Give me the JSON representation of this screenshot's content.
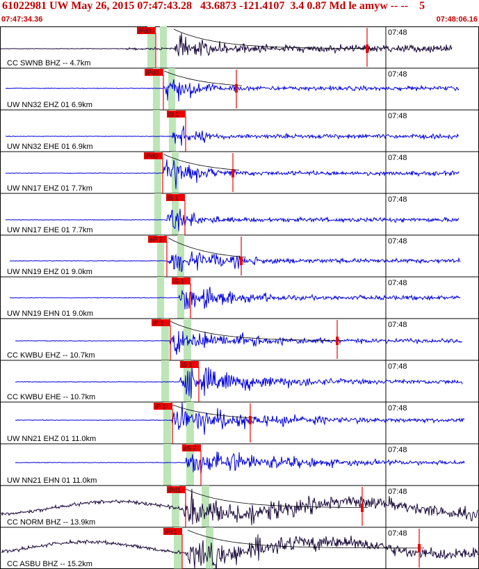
{
  "header": {
    "title": "61022981 UW May 26, 2015 07:47:43.28   43.6873 -121.4107  3.4 0.87 Md le amyw -- --    5",
    "start_time": "07:47:34.36",
    "end_time": "07:48:06.16"
  },
  "tick_label": "07:48",
  "colors": {
    "title": "#c00000",
    "pick": "#ee0000",
    "trace_broadband": "#1a0a3a",
    "trace_short_period": "#0000dd",
    "green_window": "#bde5b8",
    "amplitude_fit": "#000000"
  },
  "traces": [
    {
      "label": "CC SWNB BHZ -- 4.7km",
      "pick": "iPd0",
      "color": "broadband"
    },
    {
      "label": "UW NN32 EHZ 01 6.9km",
      "pick": "iPd0",
      "color": "short_period"
    },
    {
      "label": "UW NN32 EHE 01 6.9km",
      "pick": "iS 1",
      "color": "short_period"
    },
    {
      "label": "UW NN17 EHZ 01 7.7km",
      "pick": "iPd0",
      "color": "short_period"
    },
    {
      "label": "UW NN17 EHE 01 7.7km",
      "pick": "iS 1",
      "color": "short_period"
    },
    {
      "label": "UW NN19 EHZ 01 9.0km",
      "pick": "eP 2",
      "color": "short_period"
    },
    {
      "label": "UW NN19 EHN 01 9.0km",
      "pick": "iS 1",
      "color": "short_period"
    },
    {
      "label": "CC KWBU EHZ -- 10.7km",
      "pick": "iP 1",
      "color": "short_period"
    },
    {
      "label": "CC KWBU EHE -- 10.7km",
      "pick": "iS 1",
      "color": "short_period"
    },
    {
      "label": "UW NN21 EHZ 01 11.0km",
      "pick": "iP 1",
      "color": "short_period"
    },
    {
      "label": "UW NN21 EHN 01 11.0km",
      "pick": "eS 2",
      "color": "short_period"
    },
    {
      "label": "CC NORM BHZ -- 13.9km",
      "pick": "iPd1",
      "color": "broadband"
    },
    {
      "label": "CC ASBU BHZ -- 15.2km",
      "pick": "iPc1",
      "color": "broadband"
    }
  ]
}
